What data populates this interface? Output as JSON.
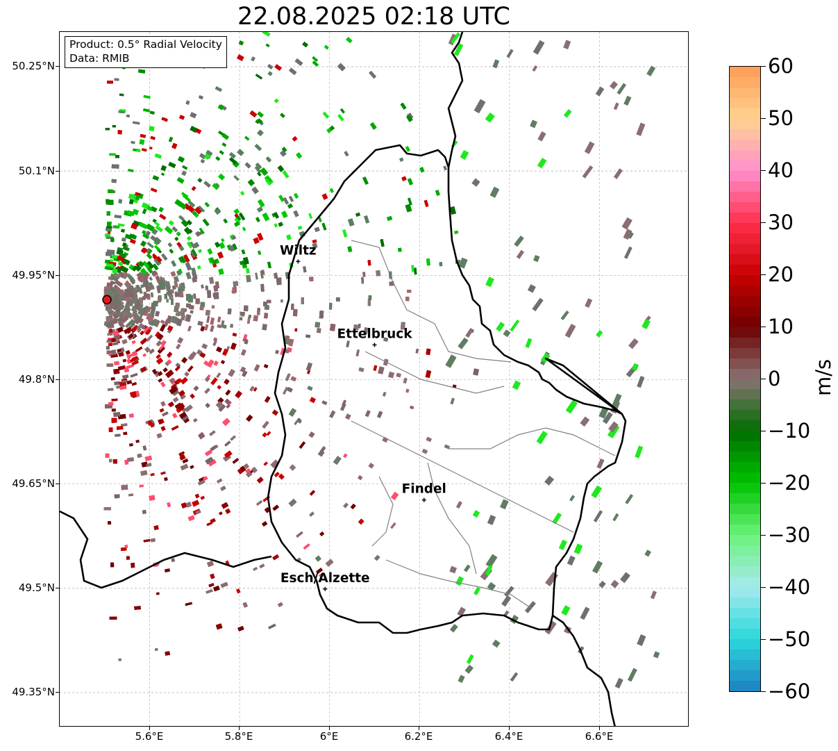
{
  "title": "22.08.2025 02:18 UTC",
  "info": {
    "product": "Product: 0.5° Radial Velocity",
    "data": "Data: RMIB"
  },
  "axes": {
    "lon_range": [
      5.4,
      6.8
    ],
    "lat_range": [
      49.3,
      50.3
    ],
    "x_ticks": [
      "5.6°E",
      "5.8°E",
      "6°E",
      "6.2°E",
      "6.4°E",
      "6.6°E"
    ],
    "y_ticks": [
      "50.25°N",
      "50.1°N",
      "49.95°N",
      "49.8°N",
      "49.65°N",
      "49.5°N",
      "49.35°N"
    ],
    "grid": true
  },
  "radar": {
    "lon": 5.505,
    "lat": 49.915,
    "marker_color": "#e8171d"
  },
  "cities": [
    {
      "name": "Wiltz",
      "lon": 5.93,
      "lat": 49.97
    },
    {
      "name": "Ettelbruck",
      "lon": 6.1,
      "lat": 49.85
    },
    {
      "name": "Findel",
      "lon": 6.21,
      "lat": 49.627
    },
    {
      "name": "Esch/Alzette",
      "lon": 5.99,
      "lat": 49.499
    }
  ],
  "colorbar": {
    "unit": "m/s",
    "min": -60,
    "max": 60,
    "ticks": [
      "60",
      "50",
      "40",
      "30",
      "20",
      "10",
      "0",
      "−10",
      "−20",
      "−30",
      "−40",
      "−50",
      "−60"
    ],
    "colors": {
      "60": "#ff9b55",
      "50": "#ffd38f",
      "40": "#ff8fcd",
      "30": "#ff2f4c",
      "20": "#c80000",
      "10": "#6e0000",
      "0": "#8a7474",
      "-10": "#006e00",
      "-20": "#00c200",
      "-30": "#6cf27a",
      "-40": "#a6eaee",
      "-50": "#2ad8db",
      "-60": "#1f7fc2"
    }
  }
}
